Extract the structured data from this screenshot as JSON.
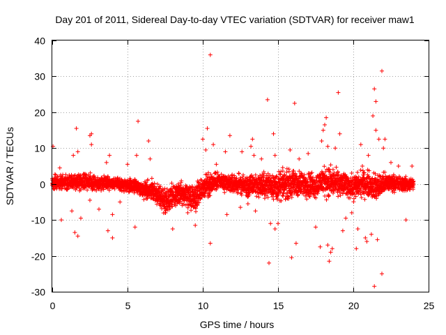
{
  "chart_data": {
    "type": "scatter",
    "title": "Day 201 of 2011, Sidereal Day-to-day VTEC variation (SDTVAR) for receiver maw1",
    "xlabel": "GPS time / hours",
    "ylabel": "SDTVAR / TECUs",
    "xlim": [
      0,
      25
    ],
    "ylim": [
      -30,
      40
    ],
    "xticks": [
      0,
      5,
      10,
      15,
      20,
      25
    ],
    "yticks": [
      -30,
      -20,
      -10,
      0,
      10,
      20,
      30,
      40
    ],
    "xtick_labels": [
      "0",
      "5",
      "10",
      "15",
      "20",
      "25"
    ],
    "ytick_labels": [
      "-30",
      "-20",
      "-10",
      "0",
      "10",
      "20",
      "30",
      "40"
    ],
    "grid": true,
    "marker": "+",
    "color": "#ff0000",
    "series": [
      {
        "name": "SDTVAR",
        "description": "dense band of points near 0 spanning 0 to 24 h",
        "band": [
          [
            0.0,
            0.0,
            2.5
          ],
          [
            0.5,
            0.3,
            2.5
          ],
          [
            1.0,
            0.5,
            2.2
          ],
          [
            1.5,
            0.8,
            2.5
          ],
          [
            2.0,
            0.5,
            2.5
          ],
          [
            2.5,
            0.8,
            2.8
          ],
          [
            3.0,
            0.3,
            2.2
          ],
          [
            3.5,
            0.5,
            2.0
          ],
          [
            4.0,
            0.2,
            1.8
          ],
          [
            4.5,
            0.0,
            1.8
          ],
          [
            5.0,
            -0.5,
            2.0
          ],
          [
            5.5,
            -0.5,
            2.2
          ],
          [
            6.0,
            -1.5,
            2.8
          ],
          [
            6.5,
            -1.5,
            3.0
          ],
          [
            7.0,
            -3.0,
            3.5
          ],
          [
            7.5,
            -5.0,
            4.0
          ],
          [
            8.0,
            -4.0,
            4.0
          ],
          [
            8.5,
            -2.5,
            3.5
          ],
          [
            9.0,
            -3.0,
            4.0
          ],
          [
            9.5,
            -3.5,
            4.5
          ],
          [
            10.0,
            -1.0,
            4.0
          ],
          [
            10.5,
            0.0,
            3.5
          ],
          [
            11.0,
            1.0,
            3.0
          ],
          [
            11.5,
            0.0,
            3.0
          ],
          [
            12.0,
            0.0,
            3.0
          ],
          [
            12.5,
            0.0,
            3.0
          ],
          [
            13.0,
            -1.0,
            3.5
          ],
          [
            13.5,
            0.0,
            3.5
          ],
          [
            14.0,
            -0.5,
            4.0
          ],
          [
            14.5,
            0.0,
            4.0
          ],
          [
            15.0,
            -1.0,
            4.5
          ],
          [
            15.5,
            0.0,
            4.5
          ],
          [
            16.0,
            0.0,
            4.5
          ],
          [
            16.5,
            0.0,
            4.0
          ],
          [
            17.0,
            0.0,
            4.0
          ],
          [
            17.5,
            -0.5,
            4.0
          ],
          [
            18.0,
            1.0,
            4.5
          ],
          [
            18.5,
            0.5,
            5.0
          ],
          [
            19.0,
            0.0,
            4.0
          ],
          [
            19.5,
            0.0,
            3.5
          ],
          [
            20.0,
            -1.0,
            4.0
          ],
          [
            20.5,
            0.0,
            4.0
          ],
          [
            21.0,
            0.0,
            4.0
          ],
          [
            21.5,
            -1.0,
            4.5
          ],
          [
            22.0,
            0.0,
            3.5
          ],
          [
            22.5,
            0.5,
            2.5
          ],
          [
            23.0,
            0.0,
            2.5
          ],
          [
            23.5,
            0.0,
            2.2
          ],
          [
            24.0,
            0.0,
            2.0
          ]
        ],
        "outliers": [
          [
            0.05,
            10.5
          ],
          [
            0.5,
            4.5
          ],
          [
            0.6,
            -10.0
          ],
          [
            1.3,
            -7.5
          ],
          [
            1.4,
            8.0
          ],
          [
            1.5,
            -13.5
          ],
          [
            1.6,
            15.5
          ],
          [
            1.7,
            -14.5
          ],
          [
            1.7,
            9.0
          ],
          [
            1.9,
            -9.5
          ],
          [
            2.5,
            13.5
          ],
          [
            2.5,
            -4.5
          ],
          [
            2.6,
            14.0
          ],
          [
            2.6,
            11.0
          ],
          [
            3.1,
            -7.0
          ],
          [
            3.6,
            6.0
          ],
          [
            3.7,
            -13.0
          ],
          [
            3.8,
            8.0
          ],
          [
            4.0,
            -15.0
          ],
          [
            4.0,
            -8.5
          ],
          [
            4.5,
            -5.0
          ],
          [
            5.0,
            5.5
          ],
          [
            5.5,
            -12.0
          ],
          [
            5.6,
            8.0
          ],
          [
            5.7,
            17.5
          ],
          [
            6.4,
            12.0
          ],
          [
            6.5,
            7.0
          ],
          [
            7.2,
            -5.5
          ],
          [
            8.0,
            -12.5
          ],
          [
            9.0,
            -8.0
          ],
          [
            9.5,
            -11.5
          ],
          [
            10.0,
            12.5
          ],
          [
            10.2,
            9.5
          ],
          [
            10.3,
            15.5
          ],
          [
            10.5,
            36.0
          ],
          [
            10.5,
            -16.5
          ],
          [
            10.7,
            11.0
          ],
          [
            10.9,
            5.5
          ],
          [
            11.5,
            9.0
          ],
          [
            11.6,
            -8.5
          ],
          [
            11.8,
            13.5
          ],
          [
            12.5,
            -6.5
          ],
          [
            12.6,
            9.0
          ],
          [
            13.0,
            -5.5
          ],
          [
            13.2,
            10.5
          ],
          [
            13.3,
            12.5
          ],
          [
            13.4,
            8.0
          ],
          [
            13.5,
            -7.5
          ],
          [
            13.9,
            7.0
          ],
          [
            14.3,
            23.5
          ],
          [
            14.4,
            -22.0
          ],
          [
            14.5,
            -11.0
          ],
          [
            14.7,
            14.0
          ],
          [
            14.8,
            8.0
          ],
          [
            14.8,
            -12.5
          ],
          [
            15.0,
            -11.0
          ],
          [
            15.8,
            9.5
          ],
          [
            15.9,
            -20.5
          ],
          [
            16.1,
            22.5
          ],
          [
            16.2,
            -16.5
          ],
          [
            16.4,
            7.0
          ],
          [
            17.0,
            8.5
          ],
          [
            17.5,
            -12.0
          ],
          [
            17.8,
            -17.5
          ],
          [
            17.9,
            12.0
          ],
          [
            18.0,
            15.0
          ],
          [
            18.1,
            16.5
          ],
          [
            18.2,
            18.5
          ],
          [
            18.3,
            10.5
          ],
          [
            18.3,
            -17.0
          ],
          [
            18.4,
            -21.5
          ],
          [
            18.5,
            -19.0
          ],
          [
            18.6,
            -18.0
          ],
          [
            18.8,
            10.0
          ],
          [
            19.0,
            25.5
          ],
          [
            19.1,
            14.0
          ],
          [
            19.3,
            -13.0
          ],
          [
            19.5,
            -9.5
          ],
          [
            19.9,
            -8.0
          ],
          [
            20.2,
            -18.0
          ],
          [
            20.3,
            -12.5
          ],
          [
            20.5,
            11.0
          ],
          [
            20.6,
            5.0
          ],
          [
            20.8,
            -15.0
          ],
          [
            20.9,
            -16.0
          ],
          [
            21.0,
            8.0
          ],
          [
            21.2,
            -14.0
          ],
          [
            21.3,
            19.0
          ],
          [
            21.4,
            26.5
          ],
          [
            21.4,
            -28.5
          ],
          [
            21.5,
            23.0
          ],
          [
            21.5,
            15.0
          ],
          [
            21.6,
            -15.5
          ],
          [
            21.7,
            12.5
          ],
          [
            21.9,
            31.5
          ],
          [
            21.9,
            -25.0
          ],
          [
            22.0,
            10.0
          ],
          [
            22.1,
            12.5
          ],
          [
            22.5,
            6.0
          ],
          [
            23.0,
            5.0
          ],
          [
            23.5,
            -10.0
          ],
          [
            23.9,
            5.0
          ]
        ]
      }
    ]
  }
}
